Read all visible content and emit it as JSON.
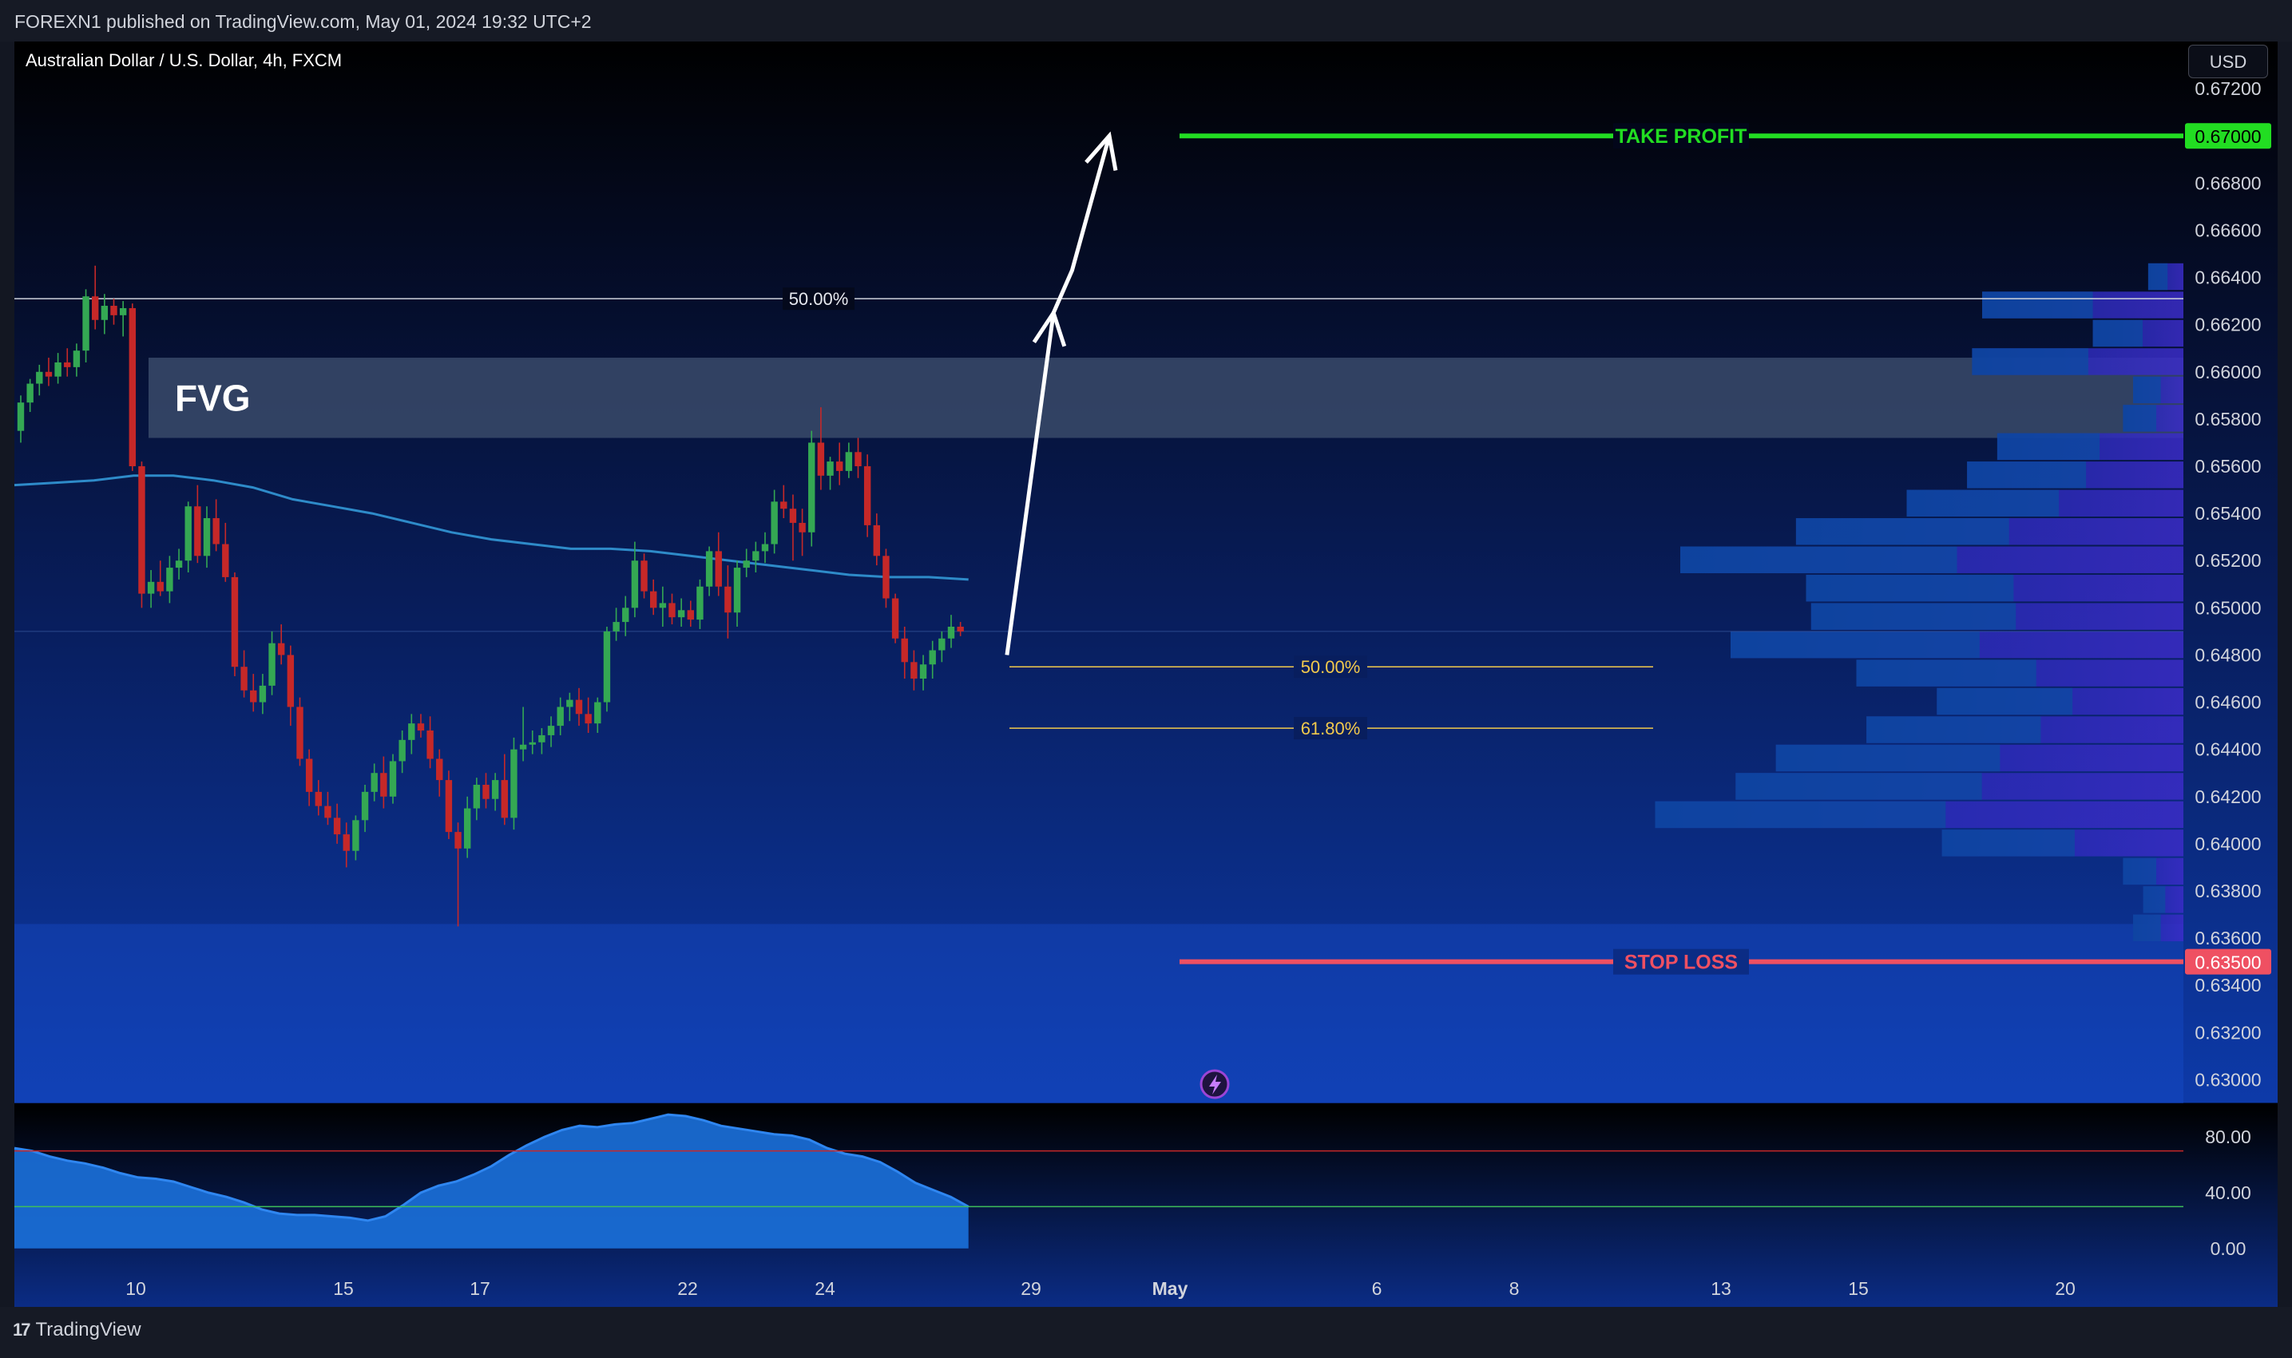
{
  "header": {
    "published_text": "FOREXN1 published on TradingView.com, May 01, 2024 19:32 UTC+2"
  },
  "chart": {
    "symbol_title": "Australian Dollar / U.S. Dollar, 4h, FXCM",
    "currency_button": "USD"
  },
  "footer": {
    "brand": "TradingView"
  },
  "colors": {
    "background_top": "#000000",
    "background_bottom": "#0d3aa9",
    "bull_candle": "#34a853",
    "bear_candle": "#c62828",
    "ma_line": "#2e8bc9",
    "take_profit": "#22dd22",
    "stop_loss": "#ef5062",
    "fib": "#f2c94c",
    "fvg_zone": "#3a4a6a",
    "oscillator_fill": "#1a6fd8"
  },
  "chart_data": [
    {
      "type": "candlestick",
      "price_axis": {
        "ticks": [
          "0.67200",
          "0.66800",
          "0.66600",
          "0.66400",
          "0.66200",
          "0.66000",
          "0.65800",
          "0.65600",
          "0.65400",
          "0.65200",
          "0.65000",
          "0.64800",
          "0.64600",
          "0.64400",
          "0.64200",
          "0.64000",
          "0.63800",
          "0.63600",
          "0.63400",
          "0.63200",
          "0.63000"
        ],
        "range": [
          0.629,
          0.674
        ]
      },
      "time_axis": {
        "ticks": [
          "10",
          "15",
          "17",
          "22",
          "24",
          "29",
          "May",
          "6",
          "8",
          "13",
          "15",
          "20"
        ]
      },
      "candles": [
        {
          "o": 0.6575,
          "h": 0.659,
          "l": 0.657,
          "c": 0.6587
        },
        {
          "o": 0.6587,
          "h": 0.6597,
          "l": 0.6583,
          "c": 0.6595
        },
        {
          "o": 0.6595,
          "h": 0.6603,
          "l": 0.659,
          "c": 0.66
        },
        {
          "o": 0.66,
          "h": 0.6606,
          "l": 0.6594,
          "c": 0.6598
        },
        {
          "o": 0.6598,
          "h": 0.6608,
          "l": 0.6595,
          "c": 0.6604
        },
        {
          "o": 0.6604,
          "h": 0.661,
          "l": 0.6598,
          "c": 0.6602
        },
        {
          "o": 0.6602,
          "h": 0.6612,
          "l": 0.6598,
          "c": 0.6609
        },
        {
          "o": 0.6609,
          "h": 0.6635,
          "l": 0.6604,
          "c": 0.6632
        },
        {
          "o": 0.6632,
          "h": 0.6645,
          "l": 0.6618,
          "c": 0.6622
        },
        {
          "o": 0.6622,
          "h": 0.6633,
          "l": 0.6616,
          "c": 0.6628
        },
        {
          "o": 0.6628,
          "h": 0.6631,
          "l": 0.662,
          "c": 0.6624
        },
        {
          "o": 0.6624,
          "h": 0.663,
          "l": 0.6615,
          "c": 0.6627
        },
        {
          "o": 0.6627,
          "h": 0.6629,
          "l": 0.6558,
          "c": 0.656
        },
        {
          "o": 0.656,
          "h": 0.6562,
          "l": 0.65,
          "c": 0.6506
        },
        {
          "o": 0.6506,
          "h": 0.6516,
          "l": 0.65,
          "c": 0.6511
        },
        {
          "o": 0.6511,
          "h": 0.652,
          "l": 0.6505,
          "c": 0.6507
        },
        {
          "o": 0.6507,
          "h": 0.6522,
          "l": 0.6502,
          "c": 0.6517
        },
        {
          "o": 0.6517,
          "h": 0.6525,
          "l": 0.6512,
          "c": 0.652
        },
        {
          "o": 0.652,
          "h": 0.6545,
          "l": 0.6515,
          "c": 0.6543
        },
        {
          "o": 0.6543,
          "h": 0.6552,
          "l": 0.6519,
          "c": 0.6522
        },
        {
          "o": 0.6522,
          "h": 0.6543,
          "l": 0.6517,
          "c": 0.6538
        },
        {
          "o": 0.6538,
          "h": 0.6546,
          "l": 0.6524,
          "c": 0.6527
        },
        {
          "o": 0.6527,
          "h": 0.6536,
          "l": 0.6511,
          "c": 0.6513
        },
        {
          "o": 0.6513,
          "h": 0.6515,
          "l": 0.6471,
          "c": 0.6475
        },
        {
          "o": 0.6475,
          "h": 0.6482,
          "l": 0.6462,
          "c": 0.6465
        },
        {
          "o": 0.6465,
          "h": 0.6472,
          "l": 0.6456,
          "c": 0.646
        },
        {
          "o": 0.646,
          "h": 0.6472,
          "l": 0.6455,
          "c": 0.6467
        },
        {
          "o": 0.6467,
          "h": 0.649,
          "l": 0.6463,
          "c": 0.6485
        },
        {
          "o": 0.6485,
          "h": 0.6493,
          "l": 0.6476,
          "c": 0.648
        },
        {
          "o": 0.648,
          "h": 0.6484,
          "l": 0.645,
          "c": 0.6458
        },
        {
          "o": 0.6458,
          "h": 0.6462,
          "l": 0.6433,
          "c": 0.6436
        },
        {
          "o": 0.6436,
          "h": 0.644,
          "l": 0.6416,
          "c": 0.6422
        },
        {
          "o": 0.6422,
          "h": 0.6427,
          "l": 0.6412,
          "c": 0.6416
        },
        {
          "o": 0.6416,
          "h": 0.6422,
          "l": 0.6408,
          "c": 0.6411
        },
        {
          "o": 0.6411,
          "h": 0.6417,
          "l": 0.64,
          "c": 0.6404
        },
        {
          "o": 0.6404,
          "h": 0.6409,
          "l": 0.639,
          "c": 0.6397
        },
        {
          "o": 0.6397,
          "h": 0.6412,
          "l": 0.6393,
          "c": 0.641
        },
        {
          "o": 0.641,
          "h": 0.6425,
          "l": 0.6405,
          "c": 0.6422
        },
        {
          "o": 0.6422,
          "h": 0.6434,
          "l": 0.6418,
          "c": 0.643
        },
        {
          "o": 0.643,
          "h": 0.6437,
          "l": 0.6415,
          "c": 0.642
        },
        {
          "o": 0.642,
          "h": 0.6438,
          "l": 0.6417,
          "c": 0.6435
        },
        {
          "o": 0.6435,
          "h": 0.6448,
          "l": 0.643,
          "c": 0.6444
        },
        {
          "o": 0.6444,
          "h": 0.6455,
          "l": 0.6438,
          "c": 0.6451
        },
        {
          "o": 0.6451,
          "h": 0.6455,
          "l": 0.6445,
          "c": 0.6448
        },
        {
          "o": 0.6448,
          "h": 0.6454,
          "l": 0.6432,
          "c": 0.6436
        },
        {
          "o": 0.6436,
          "h": 0.644,
          "l": 0.642,
          "c": 0.6427
        },
        {
          "o": 0.6427,
          "h": 0.6431,
          "l": 0.6402,
          "c": 0.6405
        },
        {
          "o": 0.6405,
          "h": 0.6409,
          "l": 0.6365,
          "c": 0.6398
        },
        {
          "o": 0.6398,
          "h": 0.642,
          "l": 0.6394,
          "c": 0.6415
        },
        {
          "o": 0.6415,
          "h": 0.6428,
          "l": 0.641,
          "c": 0.6425
        },
        {
          "o": 0.6425,
          "h": 0.643,
          "l": 0.6415,
          "c": 0.6419
        },
        {
          "o": 0.6419,
          "h": 0.643,
          "l": 0.6414,
          "c": 0.6427
        },
        {
          "o": 0.6427,
          "h": 0.6438,
          "l": 0.6408,
          "c": 0.6411
        },
        {
          "o": 0.6411,
          "h": 0.6445,
          "l": 0.6406,
          "c": 0.644
        },
        {
          "o": 0.644,
          "h": 0.6458,
          "l": 0.6435,
          "c": 0.6442
        },
        {
          "o": 0.6442,
          "h": 0.6448,
          "l": 0.6438,
          "c": 0.6443
        },
        {
          "o": 0.6443,
          "h": 0.6449,
          "l": 0.6438,
          "c": 0.6446
        },
        {
          "o": 0.6446,
          "h": 0.6454,
          "l": 0.6441,
          "c": 0.645
        },
        {
          "o": 0.645,
          "h": 0.6462,
          "l": 0.6446,
          "c": 0.6458
        },
        {
          "o": 0.6458,
          "h": 0.6464,
          "l": 0.6452,
          "c": 0.6461
        },
        {
          "o": 0.6461,
          "h": 0.6466,
          "l": 0.645,
          "c": 0.6455
        },
        {
          "o": 0.6455,
          "h": 0.6462,
          "l": 0.6447,
          "c": 0.6451
        },
        {
          "o": 0.6451,
          "h": 0.6462,
          "l": 0.6447,
          "c": 0.646
        },
        {
          "o": 0.646,
          "h": 0.6492,
          "l": 0.6456,
          "c": 0.649
        },
        {
          "o": 0.649,
          "h": 0.65,
          "l": 0.6486,
          "c": 0.6494
        },
        {
          "o": 0.6494,
          "h": 0.6505,
          "l": 0.6488,
          "c": 0.65
        },
        {
          "o": 0.65,
          "h": 0.6528,
          "l": 0.6496,
          "c": 0.652
        },
        {
          "o": 0.652,
          "h": 0.6523,
          "l": 0.6504,
          "c": 0.6507
        },
        {
          "o": 0.6507,
          "h": 0.6512,
          "l": 0.6497,
          "c": 0.65
        },
        {
          "o": 0.65,
          "h": 0.6509,
          "l": 0.6492,
          "c": 0.6502
        },
        {
          "o": 0.6502,
          "h": 0.6506,
          "l": 0.6493,
          "c": 0.6496
        },
        {
          "o": 0.6496,
          "h": 0.6504,
          "l": 0.6492,
          "c": 0.6499
        },
        {
          "o": 0.6499,
          "h": 0.6503,
          "l": 0.6492,
          "c": 0.6495
        },
        {
          "o": 0.6495,
          "h": 0.6512,
          "l": 0.6491,
          "c": 0.6509
        },
        {
          "o": 0.6509,
          "h": 0.6526,
          "l": 0.6505,
          "c": 0.6524
        },
        {
          "o": 0.6524,
          "h": 0.6532,
          "l": 0.6505,
          "c": 0.6509
        },
        {
          "o": 0.6509,
          "h": 0.6518,
          "l": 0.6487,
          "c": 0.6498
        },
        {
          "o": 0.6498,
          "h": 0.652,
          "l": 0.6492,
          "c": 0.6517
        },
        {
          "o": 0.6517,
          "h": 0.6525,
          "l": 0.6513,
          "c": 0.652
        },
        {
          "o": 0.652,
          "h": 0.6528,
          "l": 0.6515,
          "c": 0.6524
        },
        {
          "o": 0.6524,
          "h": 0.6532,
          "l": 0.6519,
          "c": 0.6527
        },
        {
          "o": 0.6527,
          "h": 0.655,
          "l": 0.6523,
          "c": 0.6545
        },
        {
          "o": 0.6545,
          "h": 0.6552,
          "l": 0.6538,
          "c": 0.6542
        },
        {
          "o": 0.6542,
          "h": 0.6548,
          "l": 0.652,
          "c": 0.6536
        },
        {
          "o": 0.6536,
          "h": 0.6542,
          "l": 0.6522,
          "c": 0.6532
        },
        {
          "o": 0.6532,
          "h": 0.6575,
          "l": 0.6526,
          "c": 0.657
        },
        {
          "o": 0.657,
          "h": 0.6585,
          "l": 0.655,
          "c": 0.6556
        },
        {
          "o": 0.6556,
          "h": 0.6564,
          "l": 0.655,
          "c": 0.6562
        },
        {
          "o": 0.6562,
          "h": 0.657,
          "l": 0.6552,
          "c": 0.6558
        },
        {
          "o": 0.6558,
          "h": 0.657,
          "l": 0.6555,
          "c": 0.6566
        },
        {
          "o": 0.6566,
          "h": 0.6572,
          "l": 0.6555,
          "c": 0.656
        },
        {
          "o": 0.656,
          "h": 0.6565,
          "l": 0.653,
          "c": 0.6535
        },
        {
          "o": 0.6535,
          "h": 0.654,
          "l": 0.6518,
          "c": 0.6522
        },
        {
          "o": 0.6522,
          "h": 0.6525,
          "l": 0.65,
          "c": 0.6504
        },
        {
          "o": 0.6504,
          "h": 0.6506,
          "l": 0.6485,
          "c": 0.6487
        },
        {
          "o": 0.6487,
          "h": 0.6492,
          "l": 0.647,
          "c": 0.6477
        },
        {
          "o": 0.6477,
          "h": 0.6482,
          "l": 0.6465,
          "c": 0.647
        },
        {
          "o": 0.647,
          "h": 0.648,
          "l": 0.6465,
          "c": 0.6476
        },
        {
          "o": 0.6476,
          "h": 0.6486,
          "l": 0.647,
          "c": 0.6482
        },
        {
          "o": 0.6482,
          "h": 0.649,
          "l": 0.6477,
          "c": 0.6487
        },
        {
          "o": 0.6487,
          "h": 0.6497,
          "l": 0.6483,
          "c": 0.6492
        },
        {
          "o": 0.6492,
          "h": 0.6494,
          "l": 0.6488,
          "c": 0.649
        }
      ],
      "moving_average": [
        0.6552,
        0.6553,
        0.6554,
        0.6556,
        0.6556,
        0.6554,
        0.6551,
        0.6546,
        0.6543,
        0.654,
        0.6536,
        0.6532,
        0.6529,
        0.6527,
        0.6525,
        0.6525,
        0.6524,
        0.6522,
        0.652,
        0.6518,
        0.6516,
        0.6514,
        0.6513,
        0.6513,
        0.6512
      ],
      "levels": [
        {
          "label": "TAKE PROFIT",
          "price": 0.67,
          "price_label": "0.67000"
        },
        {
          "label": "STOP LOSS",
          "price": 0.635,
          "price_label": "0.63500"
        },
        {
          "label": "50.00%",
          "price": 0.6631
        },
        {
          "label": "50.00%",
          "price": 0.6475
        },
        {
          "label": "61.80%",
          "price": 0.6449
        }
      ],
      "zones": [
        {
          "label": "FVG",
          "from": 0.6572,
          "to": 0.6606
        },
        {
          "label": "",
          "from": 0.629,
          "to": 0.6366
        }
      ],
      "volume_profile": [
        {
          "price": 0.664,
          "size": 0.07
        },
        {
          "price": 0.6628,
          "size": 0.4
        },
        {
          "price": 0.6616,
          "size": 0.18
        },
        {
          "price": 0.6604,
          "size": 0.42
        },
        {
          "price": 0.6592,
          "size": 0.1
        },
        {
          "price": 0.658,
          "size": 0.12
        },
        {
          "price": 0.6568,
          "size": 0.37
        },
        {
          "price": 0.6556,
          "size": 0.43
        },
        {
          "price": 0.6544,
          "size": 0.55
        },
        {
          "price": 0.6532,
          "size": 0.77
        },
        {
          "price": 0.652,
          "size": 1.0
        },
        {
          "price": 0.6508,
          "size": 0.75
        },
        {
          "price": 0.6496,
          "size": 0.74
        },
        {
          "price": 0.6484,
          "size": 0.9
        },
        {
          "price": 0.6472,
          "size": 0.65
        },
        {
          "price": 0.646,
          "size": 0.49
        },
        {
          "price": 0.6448,
          "size": 0.63
        },
        {
          "price": 0.6436,
          "size": 0.81
        },
        {
          "price": 0.6424,
          "size": 0.89
        },
        {
          "price": 0.6412,
          "size": 1.05
        },
        {
          "price": 0.64,
          "size": 0.48
        },
        {
          "price": 0.6388,
          "size": 0.12
        },
        {
          "price": 0.6376,
          "size": 0.08
        },
        {
          "price": 0.6364,
          "size": 0.1
        }
      ],
      "projection": [
        {
          "candle": 106,
          "price": 0.648
        },
        {
          "candle": 111,
          "price": 0.6625
        },
        {
          "candle": 113,
          "price": 0.6643
        },
        {
          "candle": 117,
          "price": 0.67
        }
      ]
    },
    {
      "type": "area",
      "y_axis": {
        "ticks": [
          "80.00",
          "40.00",
          "0.00"
        ],
        "range": [
          -3,
          103
        ]
      },
      "upper_line": 70,
      "lower_line": 30,
      "values": [
        72,
        70,
        66,
        63,
        61,
        58,
        54,
        51,
        50,
        48,
        44,
        40,
        37,
        33,
        28,
        25,
        24,
        24,
        23,
        22,
        20,
        23,
        31,
        40,
        45,
        48,
        53,
        59,
        67,
        74,
        80,
        85,
        88,
        87,
        89,
        90,
        93,
        96,
        95,
        92,
        88,
        86,
        84,
        82,
        81,
        78,
        72,
        68,
        66,
        62,
        55,
        47,
        42,
        37,
        30
      ]
    }
  ]
}
